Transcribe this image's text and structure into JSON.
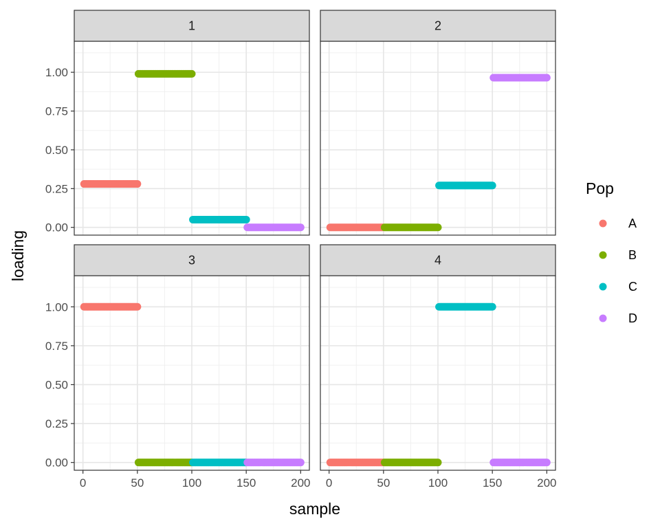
{
  "chart_data": {
    "type": "scatter",
    "xlabel": "sample",
    "ylabel": "loading",
    "xlim": [
      -8,
      208
    ],
    "ylim": [
      -0.05,
      1.2
    ],
    "x_ticks": [
      0,
      50,
      100,
      150,
      200
    ],
    "x_tick_labels": [
      "0",
      "50",
      "100",
      "150",
      "200"
    ],
    "y_ticks": [
      0,
      0.25,
      0.5,
      0.75,
      1.0
    ],
    "y_tick_labels": [
      "0.00",
      "0.25",
      "0.50",
      "0.75",
      "1.00"
    ],
    "grid": true,
    "legend": {
      "title": "Pop",
      "position": "right",
      "entries": [
        {
          "label": "A",
          "color": "#F8766D"
        },
        {
          "label": "B",
          "color": "#7CAE00"
        },
        {
          "label": "C",
          "color": "#00BFC4"
        },
        {
          "label": "D",
          "color": "#C77CFF"
        }
      ]
    },
    "facets": [
      {
        "label": "1",
        "series": [
          {
            "pop": "A",
            "x_range": [
              1,
              50
            ],
            "y": 0.28
          },
          {
            "pop": "B",
            "x_range": [
              51,
              100
            ],
            "y": 0.99
          },
          {
            "pop": "C",
            "x_range": [
              101,
              150
            ],
            "y": 0.05
          },
          {
            "pop": "D",
            "x_range": [
              151,
              200
            ],
            "y": 0.0
          }
        ]
      },
      {
        "label": "2",
        "series": [
          {
            "pop": "A",
            "x_range": [
              1,
              50
            ],
            "y": 0.0
          },
          {
            "pop": "B",
            "x_range": [
              51,
              100
            ],
            "y": 0.0
          },
          {
            "pop": "C",
            "x_range": [
              101,
              150
            ],
            "y": 0.27
          },
          {
            "pop": "D",
            "x_range": [
              151,
              200
            ],
            "y": 0.965
          }
        ]
      },
      {
        "label": "3",
        "series": [
          {
            "pop": "A",
            "x_range": [
              1,
              50
            ],
            "y": 1.0
          },
          {
            "pop": "B",
            "x_range": [
              51,
              100
            ],
            "y": 0.0
          },
          {
            "pop": "C",
            "x_range": [
              101,
              150
            ],
            "y": 0.0
          },
          {
            "pop": "D",
            "x_range": [
              151,
              200
            ],
            "y": 0.0
          }
        ]
      },
      {
        "label": "4",
        "series": [
          {
            "pop": "A",
            "x_range": [
              1,
              50
            ],
            "y": 0.0
          },
          {
            "pop": "B",
            "x_range": [
              51,
              100
            ],
            "y": 0.0
          },
          {
            "pop": "C",
            "x_range": [
              101,
              150
            ],
            "y": 1.0
          },
          {
            "pop": "D",
            "x_range": [
              151,
              200
            ],
            "y": 0.0
          }
        ]
      }
    ]
  }
}
